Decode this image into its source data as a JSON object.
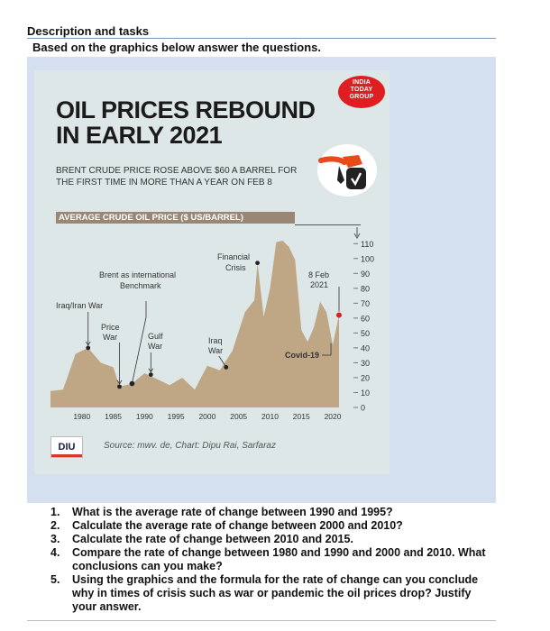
{
  "header": {
    "title": "Description and tasks",
    "subtitle": "Based on the graphics below answer the questions."
  },
  "infographic": {
    "logo": {
      "line1": "INDIA",
      "line2": "TODAY",
      "line3": "GROUP"
    },
    "title_line1": "OIL PRICES REBOUND",
    "title_line2": "IN EARLY 2021",
    "subtitle_line1": "BRENT CRUDE PRICE ROSE ABOVE $60 A BARREL FOR",
    "subtitle_line2": "THE FIRST TIME IN MORE THAN A YEAR ON FEB 8",
    "chart_banner": "AVERAGE CRUDE OIL PRICE ($ US/BARREL)",
    "pump_icon": "fuel-pump-icon",
    "source_logo": "DIU",
    "source": "Source: mwv. de, Chart: Dipu Rai, Sarfaraz"
  },
  "chart_data": {
    "type": "area",
    "x": [
      1975,
      1977,
      1979,
      1981,
      1983,
      1985,
      1986,
      1988,
      1990,
      1992,
      1994,
      1996,
      1998,
      2000,
      2002,
      2004,
      2006,
      2007.5,
      2008,
      2009,
      2010,
      2011,
      2012,
      2013,
      2014,
      2015,
      2016,
      2017,
      2018,
      2019,
      2020,
      2021
    ],
    "values": [
      11,
      12,
      36,
      40,
      30,
      27,
      14,
      16,
      23,
      19,
      15,
      20,
      12,
      28,
      25,
      38,
      64,
      72,
      97,
      61,
      80,
      111,
      112,
      108,
      99,
      52,
      44,
      54,
      71,
      64,
      42,
      62
    ],
    "xticks": [
      "1980",
      "1985",
      "1990",
      "1995",
      "2000",
      "2005",
      "2010",
      "2015",
      "2020"
    ],
    "yticks": [
      "0",
      "10",
      "20",
      "30",
      "40",
      "50",
      "60",
      "70",
      "80",
      "90",
      "100",
      "110"
    ],
    "ylim": [
      0,
      115
    ],
    "fill_color": "#bfa785",
    "marker_color": "#222222",
    "highlight_color": "#e01e22",
    "annotations": [
      {
        "name": "Iraq/Iran War",
        "x": 1981,
        "y": 40
      },
      {
        "name": "Price War",
        "x": 1986,
        "y": 14
      },
      {
        "name": "Brent as international Benchmark",
        "x": 1988,
        "y": 16
      },
      {
        "name": "Gulf War",
        "x": 1991,
        "y": 22
      },
      {
        "name": "Iraq War",
        "x": 2003,
        "y": 27
      },
      {
        "name": "Financial Crisis",
        "x": 2008,
        "y": 97
      },
      {
        "name": "Covid-19",
        "x": 2020,
        "y": 42
      },
      {
        "name": "8 Feb 2021",
        "x": 2021,
        "y": 62
      }
    ]
  },
  "questions": [
    "What is the average rate of change between 1990 and 1995?",
    "Calculate the average rate of change between 2000 and 2010?",
    "Calculate the rate of change between 2010 and 2015.",
    "Compare the rate of change between 1980 and 1990 and 2000 and 2010. What conclusions can you make?",
    "Using the graphics and the formula for the rate of change can you conclude why in times of crisis such as war or pandemic the oil prices drop? Justify your answer."
  ]
}
